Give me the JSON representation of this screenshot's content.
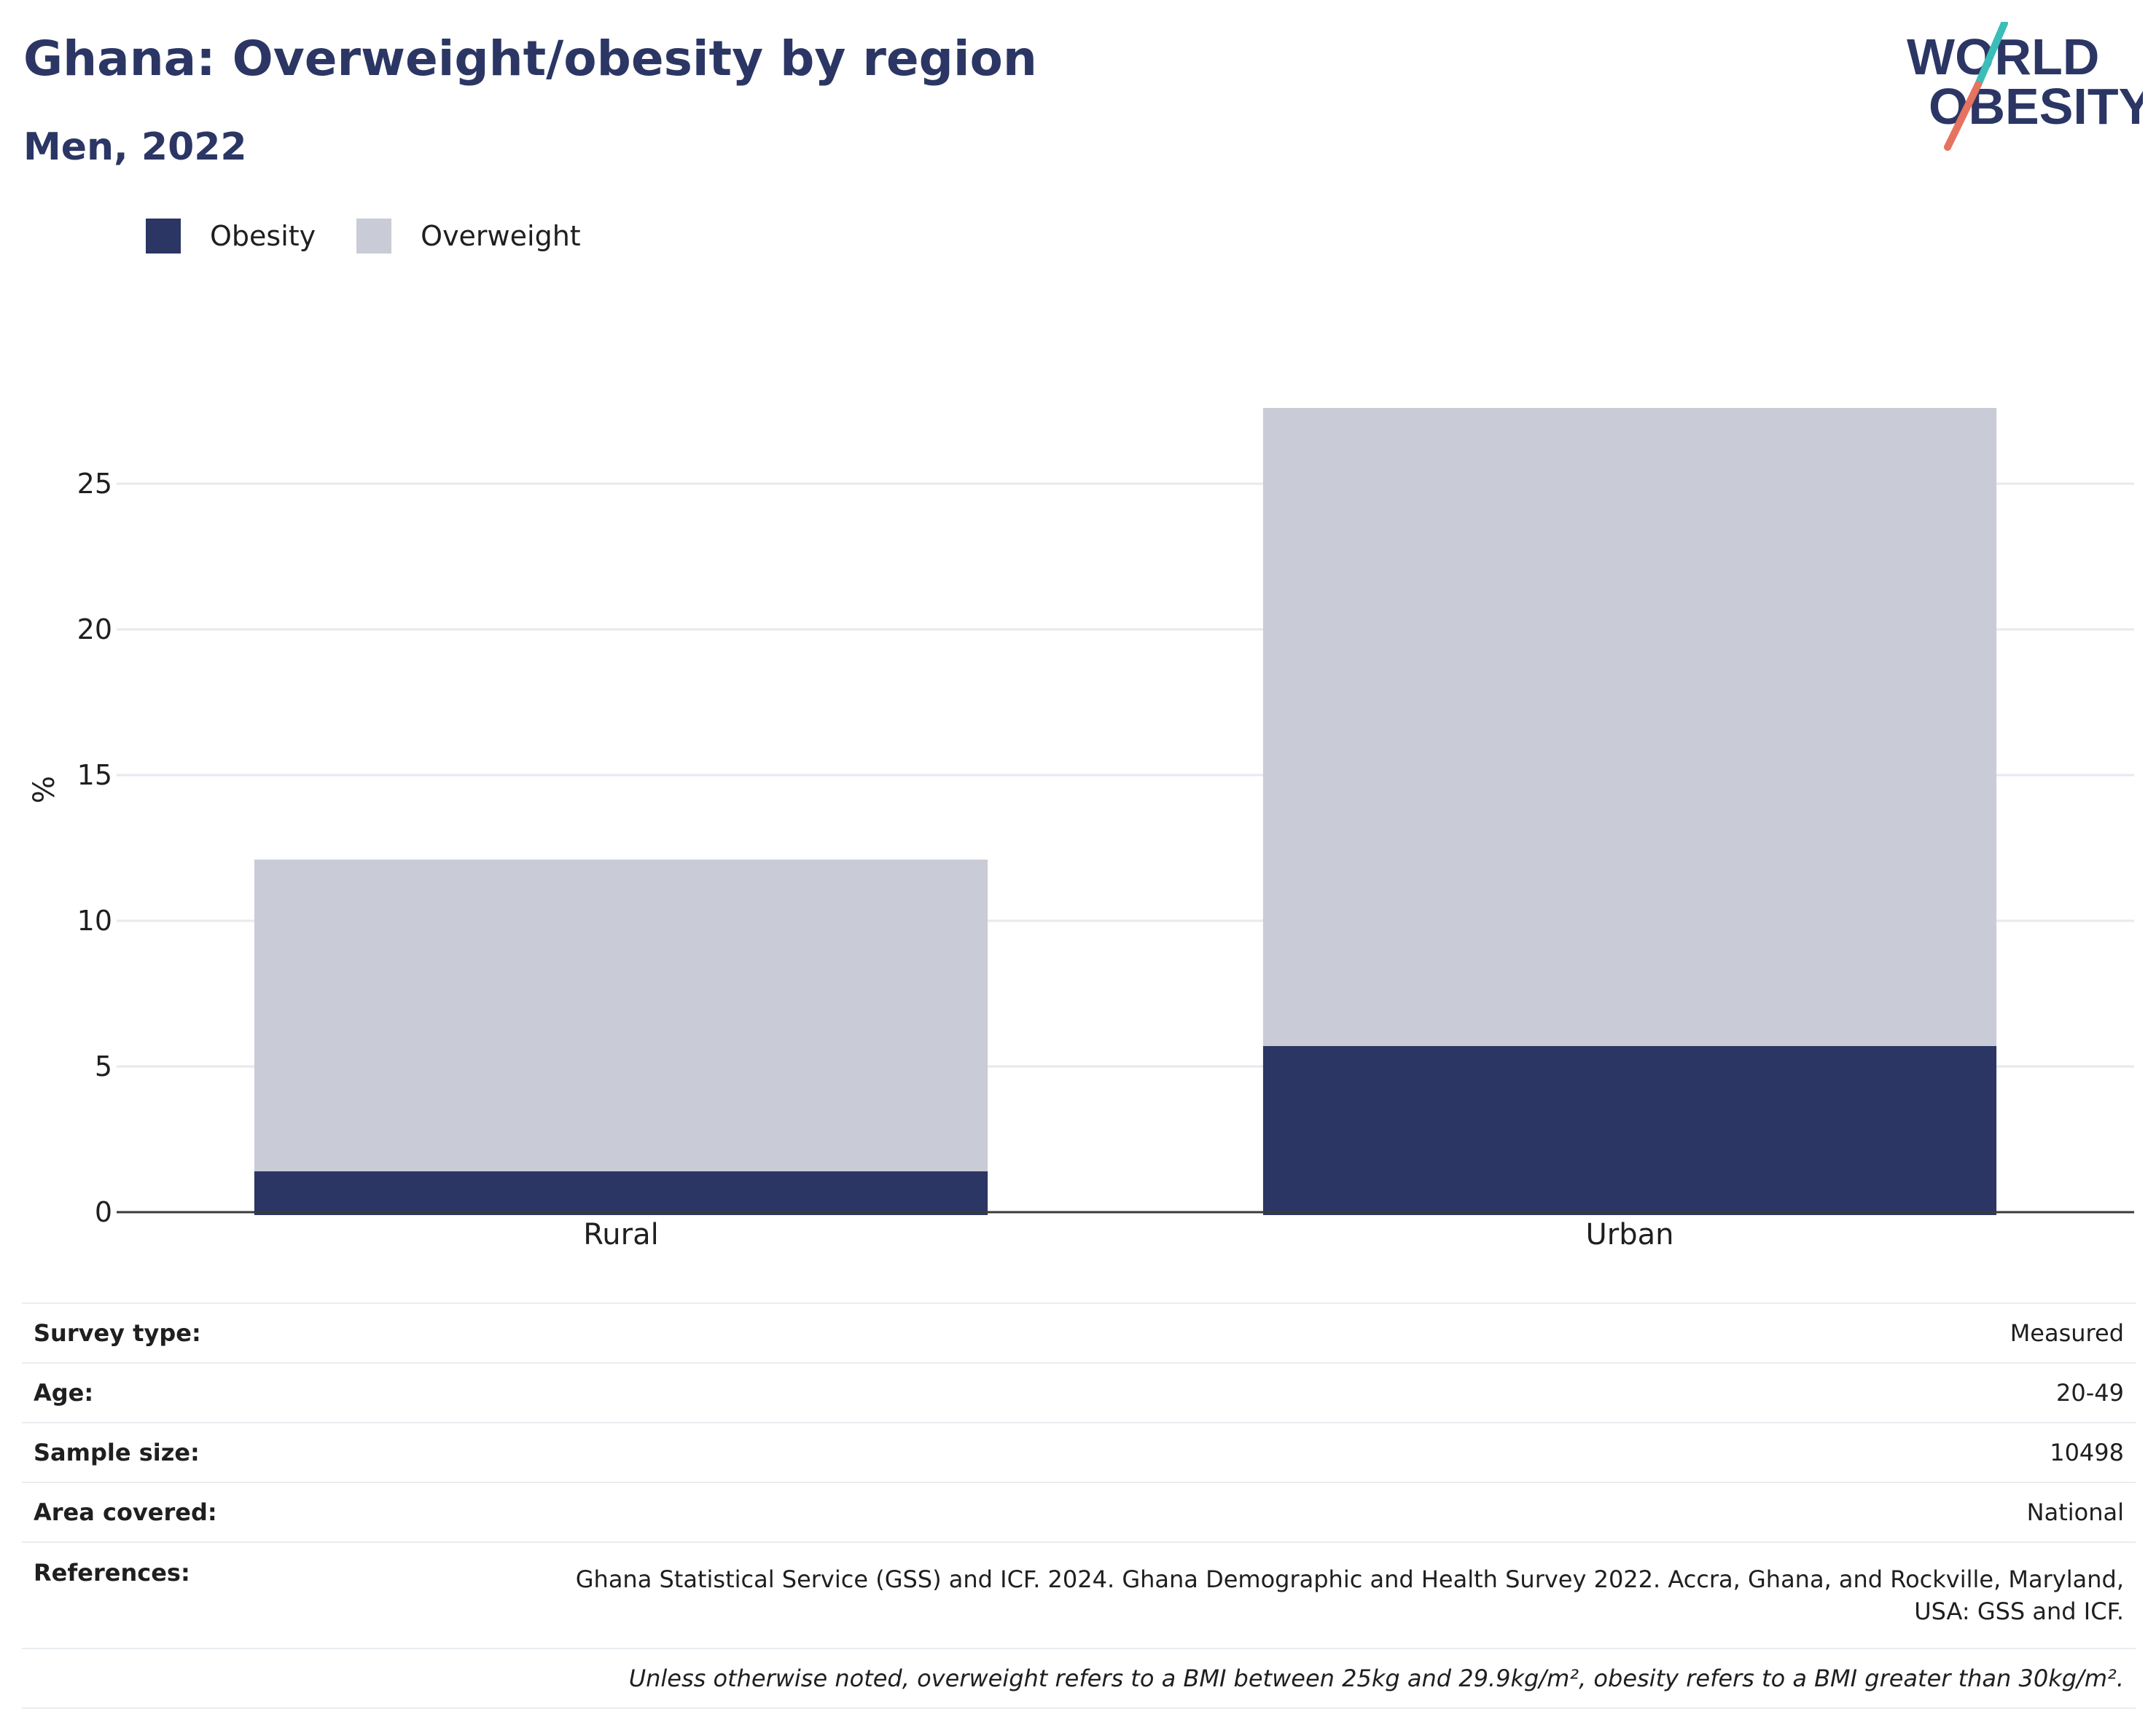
{
  "title": "Ghana: Overweight/obesity by region",
  "subtitle": "Men, 2022",
  "logo": {
    "line1": "WORLD",
    "line2": "OBESITY"
  },
  "legend": [
    {
      "label": "Obesity",
      "color": "#2b3664"
    },
    {
      "label": "Overweight",
      "color": "#c9cbd6"
    }
  ],
  "chart_data": {
    "type": "bar",
    "stacked": true,
    "categories": [
      "Rural",
      "Urban"
    ],
    "series": [
      {
        "name": "Obesity",
        "values": [
          1.4,
          5.7
        ],
        "color": "#2b3664"
      },
      {
        "name": "Overweight",
        "values": [
          10.7,
          21.9
        ],
        "color": "#c9cbd6"
      }
    ],
    "ylabel": "%",
    "yticks": [
      0,
      5,
      10,
      15,
      20,
      25
    ],
    "ylim": [
      0,
      28.5
    ],
    "grid": true,
    "legend_position": "top-left"
  },
  "info": {
    "rows": [
      {
        "key": "Survey type:",
        "value": "Measured"
      },
      {
        "key": "Age:",
        "value": "20-49"
      },
      {
        "key": "Sample size:",
        "value": "10498"
      },
      {
        "key": "Area covered:",
        "value": "National"
      },
      {
        "key": "References:",
        "value_line1": "Ghana Statistical Service (GSS) and ICF. 2024. Ghana Demographic and Health Survey 2022. Accra, Ghana, and Rockville, Maryland,",
        "value_line2": "USA: GSS and ICF."
      }
    ],
    "note": "Unless otherwise noted, overweight refers to a BMI between 25kg and 29.9kg/m², obesity refers to a BMI greater than 30kg/m²."
  }
}
